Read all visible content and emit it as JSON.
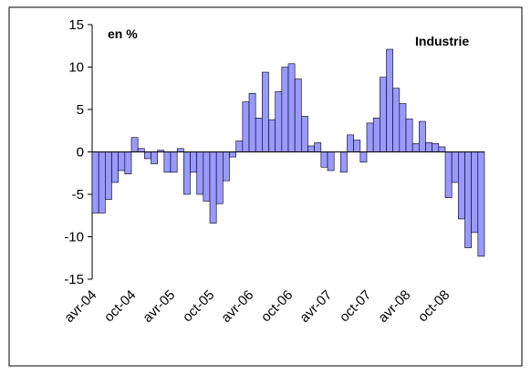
{
  "chart_data": {
    "type": "bar",
    "annotations": [
      "en %",
      "Industrie"
    ],
    "categories": [
      "avr-04",
      null,
      null,
      null,
      null,
      null,
      "oct-04",
      null,
      null,
      null,
      null,
      null,
      "avr-05",
      null,
      null,
      null,
      null,
      null,
      "oct-05",
      null,
      null,
      null,
      null,
      null,
      "avr-06",
      null,
      null,
      null,
      null,
      null,
      "oct-06",
      null,
      null,
      null,
      null,
      null,
      "avr-07",
      null,
      null,
      null,
      null,
      null,
      "oct-07",
      null,
      null,
      null,
      null,
      null,
      "avr-08",
      null,
      null,
      null,
      null,
      null,
      "oct-08",
      null,
      null,
      null,
      null,
      null
    ],
    "values": [
      -7.2,
      -7.2,
      -5.6,
      -3.6,
      -2.2,
      -2.6,
      1.7,
      0.4,
      -0.8,
      -1.4,
      0.2,
      -2.4,
      -2.4,
      0.4,
      -5.0,
      -2.4,
      -5.0,
      -5.8,
      -8.4,
      -6.1,
      -3.4,
      -0.6,
      1.3,
      5.9,
      6.9,
      4.0,
      9.4,
      3.8,
      7.1,
      10.0,
      10.4,
      8.6,
      4.2,
      0.7,
      1.1,
      -1.8,
      -2.2,
      0,
      -2.4,
      2.0,
      1.4,
      -1.2,
      3.4,
      4.0,
      8.8,
      12.1,
      7.5,
      5.7,
      3.9,
      1.0,
      3.6,
      1.1,
      1.0,
      0.6,
      -5.4,
      -3.6,
      -7.9,
      -11.3,
      -9.5,
      -12.3
    ],
    "color": "#9999ff",
    "ylim": [
      -15,
      15
    ],
    "yticks": [
      -15,
      -10,
      -5,
      0,
      5,
      10,
      15
    ],
    "grid": false
  }
}
